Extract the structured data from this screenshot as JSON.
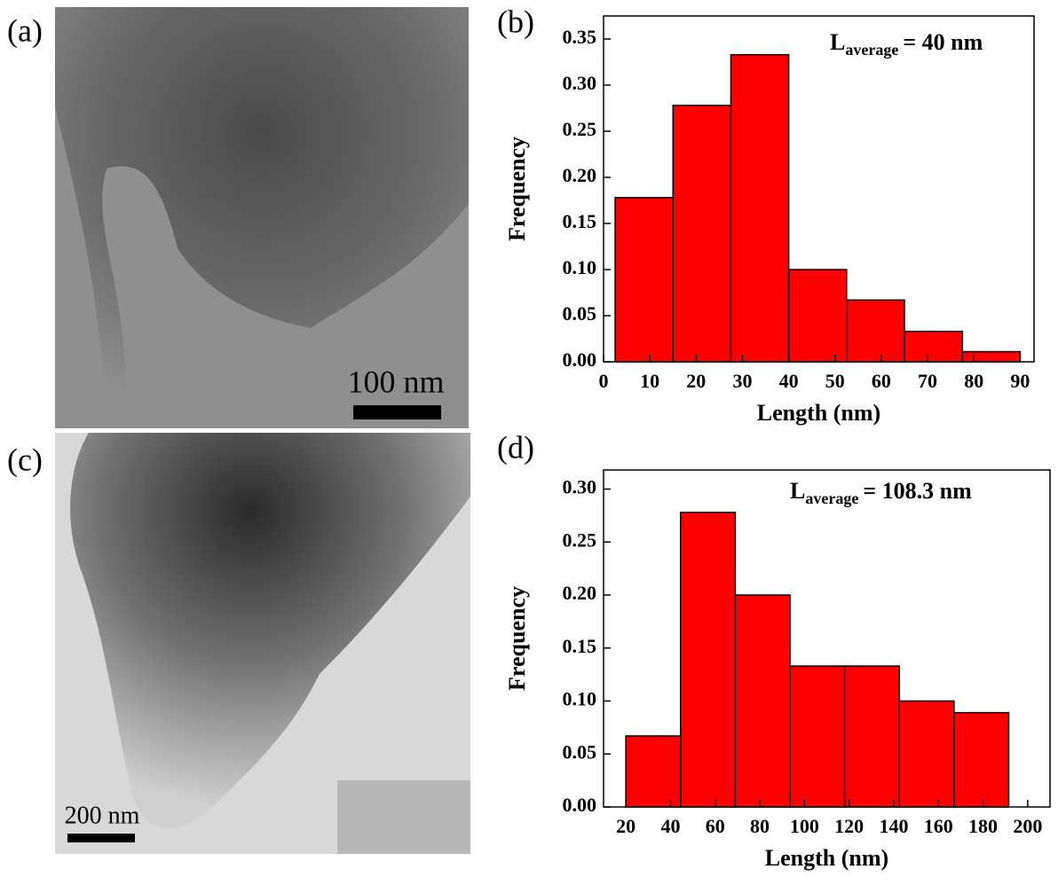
{
  "panel_labels": [
    "(a)",
    "(b)",
    "(c)",
    "(d)"
  ],
  "scale_bars": [
    "100 nm",
    "200 nm"
  ],
  "chart_data": [
    {
      "type": "histogram",
      "x_label": "Length (nm)",
      "y_label": "Frequency",
      "annotation": {
        "symbol": "L",
        "subscript": "average",
        "text": "= 40 nm"
      },
      "bins": [
        2.5,
        15,
        27.5,
        40,
        52.5,
        65,
        77.5,
        90
      ],
      "values": [
        0.178,
        0.278,
        0.333,
        0.1,
        0.067,
        0.033,
        0.011
      ],
      "color": "#ff0000",
      "xlim": [
        0,
        93
      ],
      "xticks": [
        0,
        10,
        20,
        30,
        40,
        50,
        60,
        70,
        80,
        90
      ],
      "ylim": [
        0,
        0.375
      ],
      "yticks": [
        {
          "value": 0,
          "label": "0.00"
        },
        {
          "value": 0.05,
          "label": "0.05"
        },
        {
          "value": 0.1,
          "label": "0.10"
        },
        {
          "value": 0.15,
          "label": "0.15"
        },
        {
          "value": 0.2,
          "label": "0.20"
        },
        {
          "value": 0.25,
          "label": "0.25"
        },
        {
          "value": 0.3,
          "label": "0.30"
        },
        {
          "value": 0.35,
          "label": "0.35"
        }
      ]
    },
    {
      "type": "histogram",
      "x_label": "Length (nm)",
      "y_label": "Frequency",
      "annotation": {
        "symbol": "L",
        "subscript": "average",
        "text": "= 108.3 nm"
      },
      "bins": [
        20,
        44.5,
        69,
        93.5,
        118,
        142.5,
        167,
        191.5
      ],
      "values": [
        0.067,
        0.278,
        0.2,
        0.133,
        0.133,
        0.1,
        0.089
      ],
      "color": "#ff0000",
      "xlim": [
        10,
        210
      ],
      "xticks": [
        20,
        40,
        60,
        80,
        100,
        120,
        140,
        160,
        180,
        200
      ],
      "ylim": [
        0,
        0.318
      ],
      "yticks": [
        {
          "value": 0,
          "label": "0.00"
        },
        {
          "value": 0.05,
          "label": "0.05"
        },
        {
          "value": 0.1,
          "label": "0.10"
        },
        {
          "value": 0.15,
          "label": "0.15"
        },
        {
          "value": 0.2,
          "label": "0.20"
        },
        {
          "value": 0.25,
          "label": "0.25"
        },
        {
          "value": 0.3,
          "label": "0.30"
        }
      ]
    }
  ]
}
